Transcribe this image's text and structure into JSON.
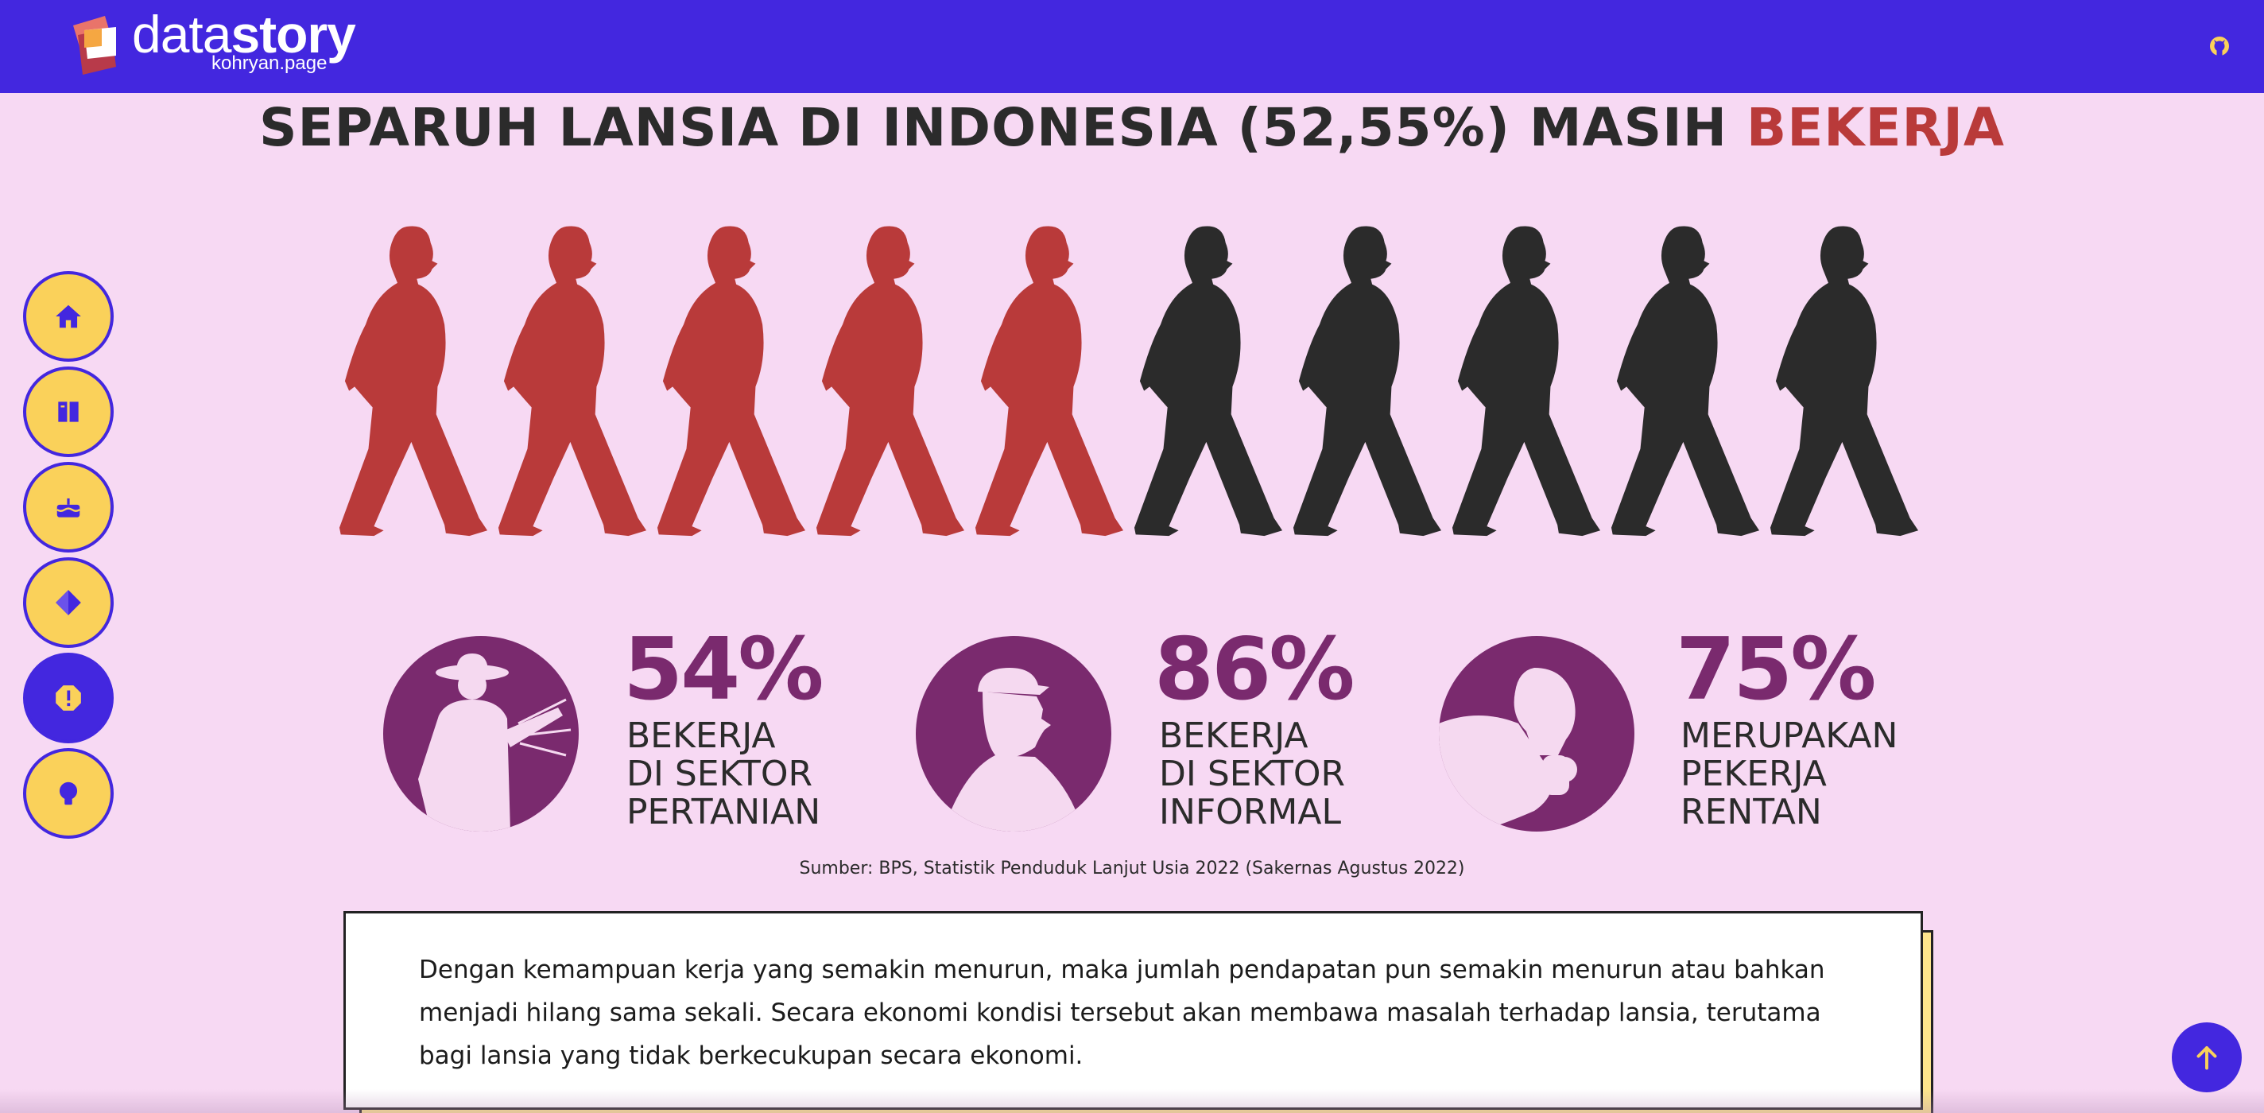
{
  "header": {
    "brand_light": "data",
    "brand_bold": "story",
    "brand_sub": "kohryan.page",
    "github_icon": "github-icon"
  },
  "sidenav": {
    "items": [
      {
        "icon": "home-icon"
      },
      {
        "icon": "book-icon"
      },
      {
        "icon": "cake-icon"
      },
      {
        "icon": "diamond-icon"
      },
      {
        "icon": "alert-icon",
        "active": true
      },
      {
        "icon": "lightbulb-icon"
      }
    ]
  },
  "title": {
    "main": "SEPARUH LANSIA DI INDONESIA (52,55%) MASIH ",
    "highlight": "BEKERJA"
  },
  "pictogram": {
    "total": 10,
    "highlighted": 5,
    "highlight_color": "#b93a3a",
    "base_color": "#2b2b2b"
  },
  "stats": [
    {
      "value": "54%",
      "line1": "BEKERJA",
      "line2": "DI SEKTOR",
      "line3": "PERTANIAN",
      "icon": "farmer-icon"
    },
    {
      "value": "86%",
      "line1": "BEKERJA",
      "line2": "DI SEKTOR",
      "line3": "INFORMAL",
      "icon": "elderly-man-icon"
    },
    {
      "value": "75%",
      "line1": "MERUPAKAN",
      "line2": "PEKERJA",
      "line3": "RENTAN",
      "icon": "thinking-man-icon"
    }
  ],
  "source": "Sumber: BPS, Statistik Penduduk Lanjut Usia 2022 (Sakernas Agustus 2022)",
  "body_text": "Dengan kemampuan kerja yang semakin menurun, maka jumlah pendapatan pun semakin menurun atau bahkan menjadi hilang sama sekali. Secara ekonomi kondisi tersebut akan membawa masalah terhadap lansia, terutama bagi lansia yang tidak berkecukupan secara ekonomi.",
  "colors": {
    "header": "#4327df",
    "background": "#f7d9f3",
    "accent_yellow": "#fad15a",
    "purple": "#7a2a6e",
    "red": "#b93a3a"
  }
}
